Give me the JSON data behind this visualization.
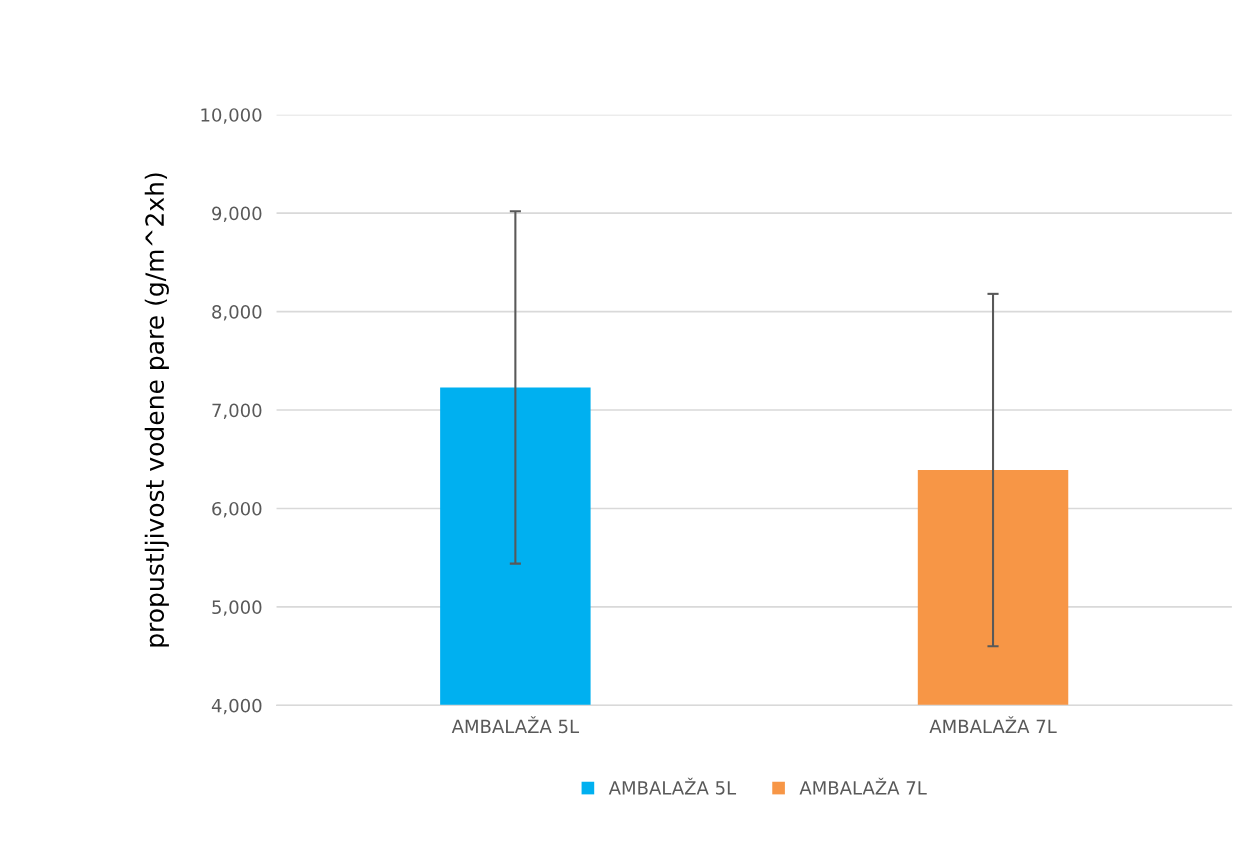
{
  "chart_data": {
    "type": "bar",
    "ylabel": "propustljivost vodene pare (g/m^2xh)",
    "categories": [
      "AMBALAŽA 5L",
      "AMBALAŽA 7L"
    ],
    "series": [
      {
        "name": "AMBALAŽA 5L",
        "color": "#00b0f0",
        "values": [
          7230,
          null
        ],
        "errors": [
          1790,
          null
        ]
      },
      {
        "name": "AMBALAŽA 7L",
        "color": "#f79646",
        "values": [
          null,
          6390
        ],
        "errors": [
          null,
          1790
        ]
      }
    ],
    "ylim": [
      4000,
      10000
    ],
    "yticks": [
      {
        "value": 4000,
        "label": "4,000"
      },
      {
        "value": 5000,
        "label": "5,000"
      },
      {
        "value": 6000,
        "label": "6,000"
      },
      {
        "value": 7000,
        "label": "7,000"
      },
      {
        "value": 8000,
        "label": "8,000"
      },
      {
        "value": 9000,
        "label": "9,000"
      },
      {
        "value": 10000,
        "label": "10,000"
      }
    ],
    "grid": "y",
    "legend": "bottom"
  }
}
